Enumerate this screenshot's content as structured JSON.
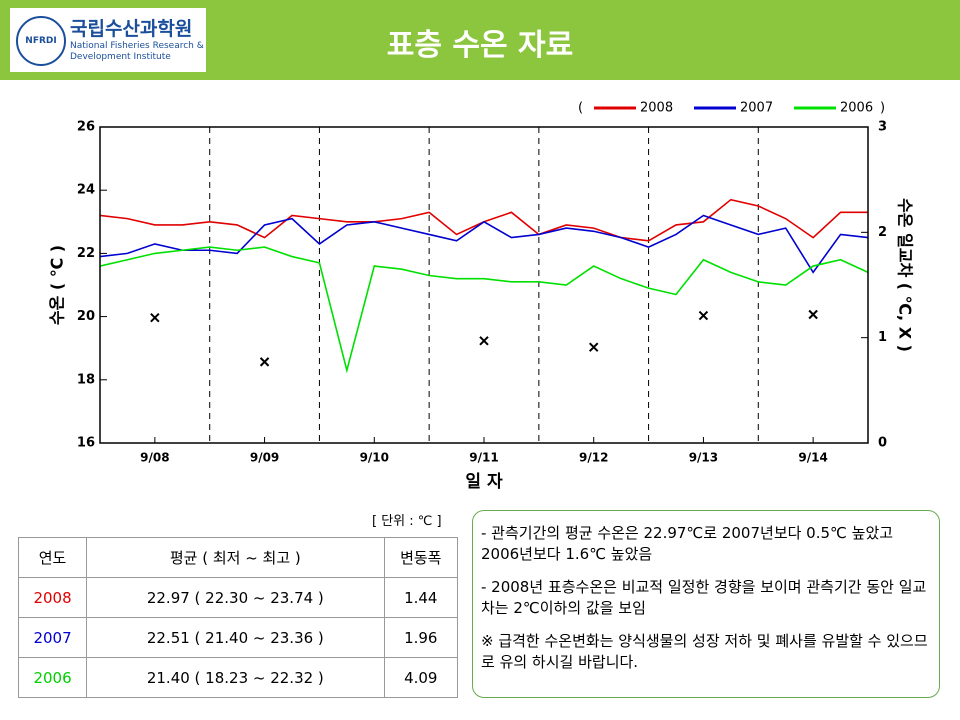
{
  "header": {
    "title": "표층 수온 자료",
    "logo_mark": "NFRDI",
    "logo_name": "국립수산과학원",
    "logo_subtitle": "National Fisheries Research & Development Institute"
  },
  "chart_data": {
    "type": "line",
    "legend_prefix": "(",
    "legend_suffix": ")",
    "ylabel": "수온 ( ℃ )",
    "y2label": "수온 일교차 ( ℃, X )",
    "xlabel": "일 자",
    "x": [
      0,
      0.25,
      0.5,
      0.75,
      1,
      1.25,
      1.5,
      1.75,
      2,
      2.25,
      2.5,
      2.75,
      3,
      3.25,
      3.5,
      3.75,
      4,
      4.25,
      4.5,
      4.75,
      5,
      5.25,
      5.5,
      5.75,
      6,
      6.25,
      6.5,
      6.75,
      7
    ],
    "xlim": [
      0,
      7
    ],
    "xticks": [
      {
        "value": 0.5,
        "label": "9/08"
      },
      {
        "value": 1.5,
        "label": "9/09"
      },
      {
        "value": 2.5,
        "label": "9/10"
      },
      {
        "value": 3.5,
        "label": "9/11"
      },
      {
        "value": 4.5,
        "label": "9/12"
      },
      {
        "value": 5.5,
        "label": "9/13"
      },
      {
        "value": 6.5,
        "label": "9/14"
      }
    ],
    "ylim": [
      16,
      26
    ],
    "yticks": [
      16,
      18,
      20,
      22,
      24,
      26
    ],
    "y2lim": [
      0,
      3
    ],
    "y2ticks": [
      0,
      1,
      2,
      3
    ],
    "series": [
      {
        "name": "2008",
        "color": "#e00000",
        "values": [
          23.2,
          23.1,
          22.9,
          22.9,
          23.0,
          22.9,
          22.5,
          23.2,
          23.1,
          23.0,
          23.0,
          23.1,
          23.3,
          22.6,
          23.0,
          23.3,
          22.6,
          22.9,
          22.8,
          22.5,
          22.4,
          22.9,
          23.0,
          23.7,
          23.5,
          23.1,
          22.5,
          23.3,
          23.3
        ]
      },
      {
        "name": "2007",
        "color": "#0000d0",
        "values": [
          21.9,
          22.0,
          22.3,
          22.1,
          22.1,
          22.0,
          22.9,
          23.1,
          22.3,
          22.9,
          23.0,
          22.8,
          22.6,
          22.4,
          23.0,
          22.5,
          22.6,
          22.8,
          22.7,
          22.5,
          22.2,
          22.6,
          23.2,
          22.9,
          22.6,
          22.8,
          21.4,
          22.6,
          22.5
        ]
      },
      {
        "name": "2006",
        "color": "#00e000",
        "values": [
          21.6,
          21.8,
          22.0,
          22.1,
          22.2,
          22.1,
          22.2,
          21.9,
          21.7,
          18.3,
          21.6,
          21.5,
          21.3,
          21.2,
          21.2,
          21.1,
          21.1,
          21.0,
          21.6,
          21.2,
          20.9,
          20.7,
          21.8,
          21.4,
          21.1,
          21.0,
          21.6,
          21.8,
          21.4
        ]
      }
    ],
    "daily_range": {
      "type": "scatter",
      "axis": "y2",
      "color": "#000000",
      "x": [
        0.5,
        1.5,
        3.5,
        4.5,
        5.5,
        6.5
      ],
      "values": [
        1.19,
        0.77,
        0.97,
        0.91,
        1.21,
        1.22
      ]
    }
  },
  "table": {
    "unit": "[ 단위 : ℃ ]",
    "header": [
      "연도",
      "평균 ( 최저 ~ 최고 )",
      "변동폭"
    ],
    "rows": [
      [
        "2008",
        "22.97 ( 22.30 ~ 23.74 )",
        "1.44"
      ],
      [
        "2007",
        "22.51 ( 21.40 ~ 23.36 )",
        "1.96"
      ],
      [
        "2006",
        "21.40 ( 18.23 ~ 22.32 )",
        "4.09"
      ]
    ],
    "row_colors": [
      "#e00000",
      "#0000d0",
      "#00d000"
    ]
  },
  "notes": [
    "- 관측기간의 평균 수온은 22.97℃로 2007년보다 0.5℃ 높았고 2006년보다 1.6℃ 높았음",
    "- 2008년 표층수온은 비교적 일정한 경향을 보이며 관측기간 동안 일교차는 2℃이하의 값을 보임",
    "※ 급격한 수온변화는 양식생물의 성장 저하 및 폐사를 유발할 수 있으므로 유의 하시길 바랍니다."
  ]
}
